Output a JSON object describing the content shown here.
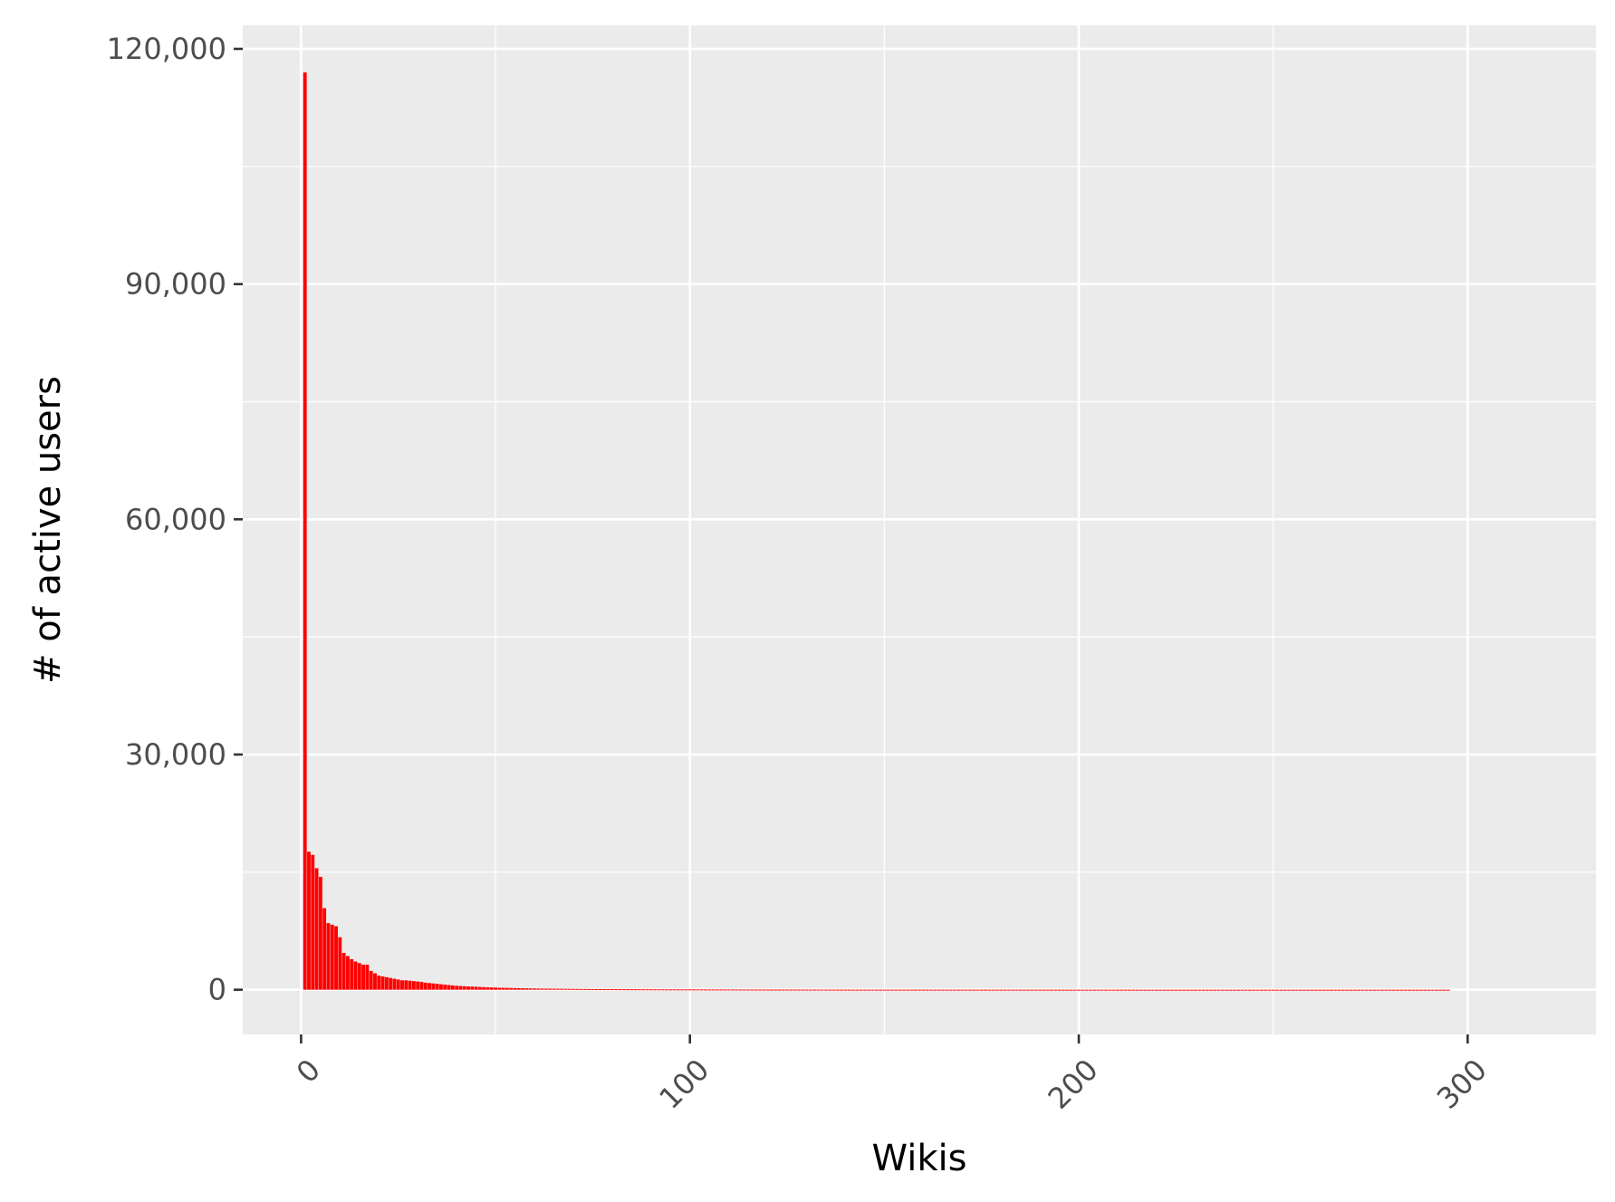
{
  "chart_data": {
    "type": "bar",
    "title": "",
    "xlabel": "Wikis",
    "ylabel": "# of active users",
    "xlim": [
      -15,
      333
    ],
    "ylim": [
      -5700,
      123000
    ],
    "x_ticks": [
      {
        "value": 0,
        "label": "0"
      },
      {
        "value": 100,
        "label": "100"
      },
      {
        "value": 200,
        "label": "200"
      },
      {
        "value": 300,
        "label": "300"
      }
    ],
    "y_ticks": [
      {
        "value": 0,
        "label": "0"
      },
      {
        "value": 30000,
        "label": "30,000"
      },
      {
        "value": 60000,
        "label": "60,000"
      },
      {
        "value": 90000,
        "label": "90,000"
      },
      {
        "value": 120000,
        "label": "120,000"
      }
    ],
    "x_tick_label_rotation": 45,
    "grid": true,
    "colors": {
      "bar": "#ff0000",
      "panel": "#ebebeb",
      "grid": "#ffffff"
    },
    "series": [
      {
        "x_start": 1,
        "values": [
          117000,
          17600,
          17200,
          15500,
          14400,
          10400,
          8500,
          8300,
          8100,
          6700,
          4700,
          4300,
          3900,
          3600,
          3400,
          3200,
          3200,
          2400,
          2100,
          1800,
          1700,
          1600,
          1500,
          1400,
          1300,
          1200,
          1200,
          1150,
          1100,
          1050,
          1000,
          900,
          850,
          800,
          750,
          700,
          650,
          600,
          550,
          500,
          480,
          450,
          420,
          400,
          380,
          350,
          330,
          310,
          290,
          270,
          250,
          240,
          230,
          220,
          210,
          200,
          190,
          180,
          170,
          160,
          150,
          145,
          140,
          135,
          130,
          125,
          120,
          115,
          110,
          105,
          100,
          95,
          90,
          85,
          80,
          78,
          76,
          74,
          72,
          70,
          68,
          66,
          64,
          62,
          60,
          58,
          56,
          54,
          52,
          50,
          48,
          47,
          46,
          45,
          44,
          43,
          42,
          41,
          40,
          39,
          38,
          37,
          36,
          35,
          34,
          33,
          32,
          31,
          30,
          29,
          28,
          27,
          26,
          25,
          24,
          23,
          22,
          21,
          20,
          20,
          19,
          19,
          18,
          18,
          17,
          17,
          16,
          16,
          15,
          15,
          14,
          14,
          13,
          13,
          12,
          12,
          12,
          11,
          11,
          11,
          10,
          10,
          10,
          10,
          9,
          9,
          9,
          9,
          8,
          8,
          8,
          8,
          8,
          7,
          7,
          7,
          7,
          7,
          7,
          6,
          6,
          6,
          6,
          6,
          6,
          6,
          5,
          5,
          5,
          5,
          5,
          5,
          5,
          5,
          4,
          4,
          4,
          4,
          4,
          4,
          4,
          4,
          4,
          4,
          3,
          3,
          3,
          3,
          3,
          3,
          3,
          3,
          3,
          3,
          3,
          3,
          2,
          2,
          2,
          2,
          2,
          2,
          2,
          2,
          2,
          2,
          2,
          2,
          2,
          2,
          2,
          2,
          2,
          2,
          2,
          2,
          1,
          1,
          1,
          1,
          1,
          1,
          1,
          1,
          1,
          1,
          1,
          1,
          1,
          1,
          1,
          1,
          1,
          1,
          1,
          1,
          1,
          1,
          1,
          1,
          1,
          1,
          1,
          1,
          1,
          1,
          1,
          1,
          1,
          1,
          1,
          1,
          1,
          1,
          1,
          1,
          1,
          1,
          1,
          1,
          1,
          1,
          1,
          1,
          1,
          1,
          1,
          1,
          1,
          1,
          1,
          1,
          1,
          1,
          1,
          1,
          1,
          1,
          1,
          1,
          1,
          1,
          1,
          1,
          1,
          1,
          1,
          1,
          1,
          1,
          1,
          1,
          1,
          1,
          1
        ]
      }
    ]
  }
}
